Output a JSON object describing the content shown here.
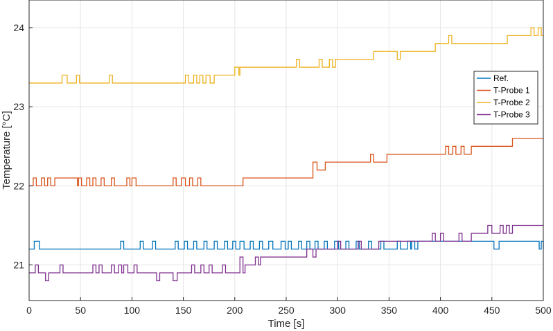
{
  "chart_data": {
    "type": "line",
    "title": "",
    "xlabel": "Time [s]",
    "ylabel": "Temperature [°C]",
    "xlim": [
      0,
      500
    ],
    "ylim": [
      20.55,
      24.35
    ],
    "xticks": [
      0,
      50,
      100,
      150,
      200,
      250,
      300,
      350,
      400,
      450,
      500
    ],
    "yticks": [
      21,
      22,
      23,
      24
    ],
    "grid": true,
    "legend_position": "right",
    "colors": {
      "axis": "#262626",
      "grid": "#e6e6e6"
    },
    "series": [
      {
        "name": "Ref.",
        "color": "#0072BD",
        "base": [
          [
            0,
            21.2
          ],
          [
            500,
            21.2
          ]
        ],
        "pulses": [
          [
            5,
            21.3,
            5
          ],
          [
            89,
            21.3,
            3
          ],
          [
            108,
            21.3,
            3
          ],
          [
            120,
            21.3,
            3
          ],
          [
            142,
            21.3,
            3
          ],
          [
            151,
            21.3,
            3
          ],
          [
            160,
            21.3,
            3
          ],
          [
            170,
            21.3,
            3
          ],
          [
            180,
            21.3,
            3
          ],
          [
            190,
            21.3,
            3
          ],
          [
            198,
            21.3,
            3
          ],
          [
            205,
            21.3,
            4
          ],
          [
            215,
            21.3,
            3
          ],
          [
            224,
            21.3,
            3
          ],
          [
            233,
            21.3,
            4
          ],
          [
            245,
            21.3,
            4
          ],
          [
            252,
            21.3,
            3
          ],
          [
            262,
            21.3,
            3
          ],
          [
            270,
            21.3,
            3
          ],
          [
            278,
            21.3,
            3
          ],
          [
            287,
            21.3,
            3
          ],
          [
            297,
            21.3,
            4
          ],
          [
            308,
            21.3,
            3
          ],
          [
            318,
            21.3,
            3
          ],
          [
            330,
            21.3,
            3
          ],
          [
            342,
            21.3,
            3
          ],
          [
            358,
            21.3,
            3
          ],
          [
            368,
            21.3,
            3
          ],
          [
            372,
            21.3,
            80
          ],
          [
            457,
            21.3,
            43
          ]
        ],
        "dips": [
          [
            362,
            21.2,
            3
          ],
          [
            375,
            21.2,
            3
          ],
          [
            452,
            21.2,
            5
          ],
          [
            496,
            21.2,
            2
          ]
        ]
      },
      {
        "name": "T-Probe 1",
        "color": "#D95319",
        "base": [
          [
            0,
            22.0
          ],
          [
            210,
            22.1
          ],
          [
            280,
            22.2
          ],
          [
            330,
            22.3
          ],
          [
            350,
            22.3
          ],
          [
            470,
            22.5
          ],
          [
            500,
            22.6
          ]
        ],
        "steps": [
          [
            0,
            22.0
          ],
          [
            208,
            22.1
          ],
          [
            278,
            22.2
          ],
          [
            288,
            22.3
          ],
          [
            332,
            22.3
          ],
          [
            348,
            22.4
          ],
          [
            430,
            22.5
          ],
          [
            472,
            22.6
          ]
        ],
        "pulses": [
          [
            4,
            22.1,
            3
          ],
          [
            12,
            22.1,
            3
          ],
          [
            18,
            22.1,
            3
          ],
          [
            25,
            22.1,
            22
          ],
          [
            40,
            22.1,
            3
          ],
          [
            48,
            22.1,
            3
          ],
          [
            56,
            22.1,
            3
          ],
          [
            62,
            22.1,
            3
          ],
          [
            70,
            22.1,
            3
          ],
          [
            80,
            22.1,
            3
          ],
          [
            95,
            22.1,
            3
          ],
          [
            100,
            22.1,
            4
          ],
          [
            140,
            22.1,
            3
          ],
          [
            148,
            22.1,
            4
          ],
          [
            156,
            22.1,
            3
          ],
          [
            164,
            22.1,
            3
          ],
          [
            276,
            22.3,
            4
          ],
          [
            332,
            22.4,
            3
          ],
          [
            348,
            22.4,
            3
          ],
          [
            405,
            22.5,
            3
          ],
          [
            412,
            22.5,
            3
          ],
          [
            420,
            22.5,
            3
          ],
          [
            470,
            22.6,
            3
          ]
        ]
      },
      {
        "name": "T-Probe 2",
        "color": "#EDB120",
        "steps": [
          [
            0,
            23.3
          ],
          [
            180,
            23.4
          ],
          [
            205,
            23.5
          ],
          [
            290,
            23.5
          ],
          [
            300,
            23.6
          ],
          [
            335,
            23.7
          ],
          [
            365,
            23.7
          ],
          [
            395,
            23.8
          ],
          [
            465,
            23.9
          ]
        ],
        "pulses": [
          [
            32,
            23.4,
            5
          ],
          [
            46,
            23.4,
            3
          ],
          [
            78,
            23.4,
            3
          ],
          [
            152,
            23.4,
            3
          ],
          [
            160,
            23.4,
            3
          ],
          [
            166,
            23.4,
            3
          ],
          [
            172,
            23.4,
            4
          ],
          [
            200,
            23.5,
            4
          ],
          [
            212,
            23.5,
            3
          ],
          [
            218,
            23.5,
            3
          ],
          [
            224,
            23.5,
            3
          ],
          [
            260,
            23.6,
            3
          ],
          [
            282,
            23.6,
            3
          ],
          [
            292,
            23.6,
            3
          ],
          [
            298,
            23.6,
            3
          ],
          [
            335,
            23.7,
            5
          ],
          [
            358,
            23.6,
            3
          ],
          [
            372,
            23.7,
            3
          ],
          [
            395,
            23.8,
            3
          ],
          [
            400,
            23.8,
            3
          ],
          [
            408,
            23.9,
            3
          ],
          [
            415,
            23.8,
            3
          ],
          [
            425,
            23.8,
            3
          ],
          [
            488,
            24.0,
            3
          ],
          [
            495,
            24.0,
            3
          ]
        ]
      },
      {
        "name": "T-Probe 3",
        "color": "#7E2F8E",
        "steps": [
          [
            0,
            20.9
          ],
          [
            210,
            21.0
          ],
          [
            225,
            21.1
          ],
          [
            255,
            21.1
          ],
          [
            270,
            21.2
          ],
          [
            300,
            21.2
          ],
          [
            340,
            21.3
          ],
          [
            390,
            21.3
          ],
          [
            430,
            21.4
          ],
          [
            470,
            21.5
          ]
        ],
        "pulses": [
          [
            6,
            21.0,
            3
          ],
          [
            30,
            21.0,
            3
          ],
          [
            62,
            21.0,
            3
          ],
          [
            68,
            21.0,
            3
          ],
          [
            80,
            21.0,
            3
          ],
          [
            87,
            21.0,
            3
          ],
          [
            92,
            21.0,
            4
          ],
          [
            102,
            21.0,
            3
          ],
          [
            158,
            21.0,
            3
          ],
          [
            167,
            21.0,
            3
          ],
          [
            175,
            21.0,
            3
          ],
          [
            188,
            21.0,
            3
          ],
          [
            205,
            21.1,
            3
          ],
          [
            220,
            21.1,
            3
          ],
          [
            226,
            21.1,
            3
          ],
          [
            238,
            21.1,
            3
          ],
          [
            252,
            21.1,
            3
          ],
          [
            273,
            21.2,
            3
          ],
          [
            282,
            21.2,
            3
          ],
          [
            300,
            21.3,
            3
          ],
          [
            320,
            21.3,
            3
          ],
          [
            340,
            21.3,
            4
          ],
          [
            392,
            21.4,
            3
          ],
          [
            400,
            21.4,
            3
          ],
          [
            418,
            21.4,
            3
          ],
          [
            446,
            21.5,
            4
          ],
          [
            458,
            21.5,
            3
          ],
          [
            464,
            21.5,
            3
          ]
        ],
        "dips": [
          [
            16,
            20.8,
            3
          ],
          [
            124,
            20.8,
            3
          ],
          [
            140,
            20.8,
            4
          ],
          [
            276,
            21.1,
            3
          ]
        ]
      }
    ]
  }
}
